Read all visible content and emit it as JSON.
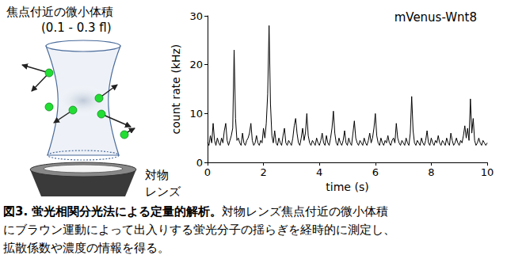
{
  "chart_data": {
    "type": "line",
    "annotation": "mVenus-Wnt8",
    "x_label": "time (s)",
    "y_label": "count rate (kHz)",
    "color": "#000000",
    "grid": false,
    "xlim": [
      0,
      10
    ],
    "xticks": [
      0,
      2,
      4,
      6,
      8,
      10
    ],
    "ylim": [
      0,
      30
    ],
    "yticks": [
      0,
      10,
      20,
      30
    ],
    "x": [
      0,
      0.05,
      0.1,
      0.15,
      0.2,
      0.25,
      0.3,
      0.35,
      0.4,
      0.45,
      0.5,
      0.55,
      0.6,
      0.65,
      0.7,
      0.75,
      0.8,
      0.85,
      0.9,
      0.95,
      1,
      1.05,
      1.1,
      1.15,
      1.2,
      1.25,
      1.3,
      1.35,
      1.4,
      1.45,
      1.5,
      1.55,
      1.6,
      1.65,
      1.7,
      1.75,
      1.8,
      1.85,
      1.9,
      1.95,
      2,
      2.05,
      2.1,
      2.15,
      2.2,
      2.25,
      2.3,
      2.35,
      2.4,
      2.45,
      2.5,
      2.55,
      2.6,
      2.65,
      2.7,
      2.75,
      2.8,
      2.85,
      2.9,
      2.95,
      3,
      3.05,
      3.1,
      3.15,
      3.2,
      3.25,
      3.3,
      3.35,
      3.4,
      3.45,
      3.5,
      3.55,
      3.6,
      3.65,
      3.7,
      3.75,
      3.8,
      3.85,
      3.9,
      3.95,
      4,
      4.05,
      4.1,
      4.15,
      4.2,
      4.25,
      4.3,
      4.35,
      4.4,
      4.45,
      4.5,
      4.55,
      4.6,
      4.65,
      4.7,
      4.75,
      4.8,
      4.85,
      4.9,
      4.95,
      5,
      5.05,
      5.1,
      5.15,
      5.2,
      5.25,
      5.3,
      5.35,
      5.4,
      5.45,
      5.5,
      5.55,
      5.6,
      5.65,
      5.7,
      5.75,
      5.8,
      5.85,
      5.9,
      5.95,
      6,
      6.05,
      6.1,
      6.15,
      6.2,
      6.25,
      6.3,
      6.35,
      6.4,
      6.45,
      6.5,
      6.55,
      6.6,
      6.65,
      6.7,
      6.75,
      6.8,
      6.85,
      6.9,
      6.95,
      7,
      7.05,
      7.1,
      7.15,
      7.2,
      7.25,
      7.3,
      7.35,
      7.4,
      7.45,
      7.5,
      7.55,
      7.6,
      7.65,
      7.7,
      7.75,
      7.8,
      7.85,
      7.9,
      7.95,
      8,
      8.05,
      8.1,
      8.15,
      8.2,
      8.25,
      8.3,
      8.35,
      8.4,
      8.45,
      8.5,
      8.55,
      8.6,
      8.65,
      8.7,
      8.75,
      8.8,
      8.85,
      8.9,
      8.95,
      9,
      9.05,
      9.1,
      9.15,
      9.2,
      9.25,
      9.3,
      9.35,
      9.4,
      9.45,
      9.5,
      9.55,
      9.6,
      9.65,
      9.7,
      9.75,
      9.8,
      9.85,
      9.9,
      9.95,
      10
    ],
    "values": [
      4,
      3.5,
      5.5,
      4,
      8,
      4.5,
      3.5,
      5,
      4,
      3.5,
      5,
      4,
      6.5,
      8,
      4.5,
      3.5,
      4.5,
      5.5,
      7,
      23,
      9,
      4.5,
      5,
      4,
      3.5,
      6,
      4,
      3.5,
      4.5,
      5,
      6,
      8,
      4.5,
      3.5,
      4,
      5.5,
      4,
      3.5,
      4.5,
      4,
      7,
      5,
      8,
      14,
      28,
      12,
      5.5,
      4,
      6.5,
      4,
      3.5,
      5,
      4,
      3.5,
      5.5,
      7,
      4,
      3.5,
      4.5,
      4,
      3.5,
      5,
      7.5,
      9,
      6,
      4,
      3.5,
      5,
      7,
      4.5,
      6,
      10,
      5.5,
      4,
      3.5,
      4.5,
      4,
      3.5,
      5,
      4,
      3.5,
      4.5,
      6,
      4,
      3.5,
      5.5,
      4,
      3.5,
      5,
      7,
      10.5,
      6,
      4,
      3.5,
      5,
      4,
      3.5,
      4.5,
      6.5,
      4,
      3.5,
      5,
      4,
      3.5,
      6,
      8.5,
      5,
      4,
      3.5,
      4.5,
      4,
      3.5,
      5,
      4,
      3.5,
      4.5,
      6,
      4,
      5,
      7,
      10,
      5.5,
      4,
      3.5,
      5,
      4,
      3.5,
      4.5,
      4,
      5.5,
      4,
      3.5,
      4.5,
      5,
      4,
      8,
      5,
      4,
      3.5,
      4.5,
      4,
      3.5,
      5,
      4,
      3.5,
      6,
      13.5,
      6.5,
      4,
      3.5,
      4.5,
      4,
      3.5,
      5,
      4,
      3.5,
      4.5,
      6.5,
      4,
      3.5,
      5,
      4,
      3.5,
      4.5,
      4,
      5.5,
      4,
      3.5,
      4.5,
      4,
      3.5,
      5,
      4,
      3.5,
      6,
      4.5,
      3.5,
      4,
      5,
      4,
      3.5,
      4.5,
      4,
      5.5,
      7.5,
      5,
      7,
      4.5,
      13,
      6,
      9,
      4.5,
      3.5,
      4,
      5,
      4,
      3.5,
      4.5,
      4,
      3.5,
      4
    ]
  },
  "diagram": {
    "title": "焦点付近の微小体積",
    "subtitle": "(0.1 - 0.3 fl)",
    "lens_label": [
      "対物",
      "レンズ"
    ]
  },
  "caption": {
    "title": "図3. 蛍光相関分光法による定量的解析。",
    "lines": [
      "対物レンズ焦点付近の微小体積",
      "にブラウン運動によって出入りする蛍光分子の揺らぎを経時的に測定し、",
      "拡散係数や濃度の情報を得る。"
    ]
  }
}
